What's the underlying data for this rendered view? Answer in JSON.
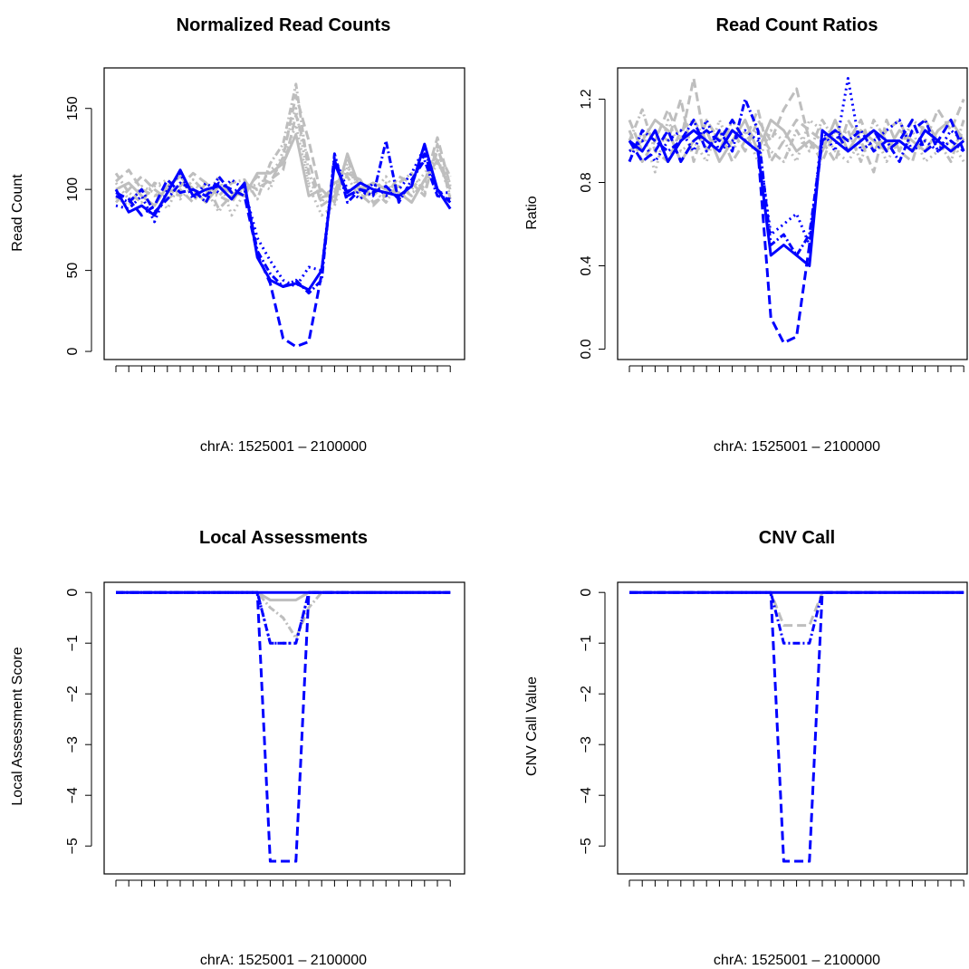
{
  "chart_data": [
    {
      "type": "line",
      "title": "Normalized Read Counts",
      "xlabel": "chrA: 1525001 – 2100000",
      "ylabel": "Read Count",
      "yticks": [
        0,
        50,
        100,
        150
      ],
      "ylim": [
        -5,
        175
      ],
      "x": [
        1,
        2,
        3,
        4,
        5,
        6,
        7,
        8,
        9,
        10,
        11,
        12,
        13,
        14,
        15,
        16,
        17,
        18,
        19,
        20,
        21,
        22,
        23,
        24,
        25,
        26,
        27
      ],
      "series": [
        {
          "color": "#bebebe",
          "dash": "10,5",
          "values": [
            105,
            112,
            100,
            96,
            98,
            102,
            110,
            104,
            88,
            96,
            100,
            108,
            104,
            120,
            158,
            130,
            95,
            98,
            120,
            97,
            90,
            98,
            102,
            96,
            104,
            132,
            102
          ]
        },
        {
          "color": "#bebebe",
          "dash": "2,4",
          "values": [
            95,
            90,
            102,
            98,
            88,
            104,
            98,
            96,
            108,
            84,
            98,
            100,
            112,
            118,
            140,
            102,
            84,
            90,
            114,
            102,
            96,
            104,
            94,
            100,
            110,
            120,
            96
          ]
        },
        {
          "color": "#bebebe",
          "dash": "8,3,2,3",
          "values": [
            110,
            98,
            92,
            104,
            100,
            96,
            106,
            98,
            96,
            104,
            106,
            94,
            116,
            128,
            165,
            110,
            92,
            104,
            108,
            94,
            100,
            92,
            104,
            110,
            98,
            124,
            108
          ]
        },
        {
          "color": "#bebebe",
          "dash": "none",
          "values": [
            100,
            104,
            96,
            90,
            102,
            108,
            100,
            92,
            102,
            98,
            96,
            110,
            110,
            116,
            134,
            96,
            100,
            92,
            122,
            100,
            104,
            100,
            98,
            92,
            106,
            118,
            100
          ]
        },
        {
          "color": "#bebebe",
          "dash": "10,5",
          "values": [
            92,
            100,
            108,
            100,
            94,
            100,
            92,
            104,
            96,
            92,
            104,
            100,
            106,
            112,
            146,
            118,
            90,
            96,
            110,
            106,
            92,
            96,
            108,
            104,
            96,
            128,
            94
          ]
        },
        {
          "color": "#bebebe",
          "dash": "2,4",
          "values": [
            104,
            94,
            98,
            102,
            106,
            94,
            102,
            100,
            86,
            100,
            98,
            104,
            100,
            124,
            150,
            104,
            96,
            100,
            116,
            96,
            98,
            108,
            96,
            98,
            102,
            116,
            104
          ]
        },
        {
          "color": "#0000ff",
          "dash": "10,5",
          "values": [
            98,
            94,
            84,
            90,
            106,
            98,
            100,
            96,
            104,
            100,
            96,
            60,
            42,
            8,
            3,
            6,
            48,
            118,
            96,
            100,
            98,
            102,
            94,
            104,
            122,
            100,
            92
          ]
        },
        {
          "color": "#0000ff",
          "dash": "2,4",
          "values": [
            90,
            88,
            96,
            80,
            100,
            110,
            94,
            104,
            98,
            106,
            100,
            70,
            56,
            44,
            40,
            52,
            50,
            120,
            100,
            94,
            104,
            96,
            100,
            110,
            126,
            98,
            98
          ]
        },
        {
          "color": "#0000ff",
          "dash": "8,3,2,3",
          "values": [
            96,
            92,
            100,
            86,
            94,
            104,
            100,
            92,
            108,
            98,
            102,
            62,
            48,
            40,
            44,
            36,
            44,
            122,
            92,
            100,
            96,
            130,
            92,
            106,
            118,
            96,
            94
          ]
        },
        {
          "color": "#0000ff",
          "dash": "none",
          "values": [
            100,
            86,
            90,
            84,
            98,
            112,
            96,
            100,
            102,
            94,
            104,
            58,
            44,
            40,
            42,
            38,
            50,
            116,
            98,
            104,
            100,
            98,
            96,
            102,
            128,
            100,
            88
          ]
        }
      ]
    },
    {
      "type": "line",
      "title": "Read Count Ratios",
      "xlabel": "chrA: 1525001 – 2100000",
      "ylabel": "Ratio",
      "yticks": [
        0.0,
        0.4,
        0.8,
        1.2
      ],
      "ytick_labels": [
        "0.0",
        "0.4",
        "0.8",
        "1.2"
      ],
      "ylim": [
        -0.05,
        1.35
      ],
      "x": [
        1,
        2,
        3,
        4,
        5,
        6,
        7,
        8,
        9,
        10,
        11,
        12,
        13,
        14,
        15,
        16,
        17,
        18,
        19,
        20,
        21,
        22,
        23,
        24,
        25,
        26,
        27
      ],
      "series": [
        {
          "color": "#bebebe",
          "dash": "10,5",
          "values": [
            1.1,
            0.95,
            1.05,
            1.0,
            1.2,
            0.9,
            1.1,
            1.0,
            1.05,
            0.95,
            1.1,
            1.0,
            1.15,
            1.25,
            1.0,
            0.9,
            1.05,
            1.0,
            1.1,
            0.95,
            1.05,
            1.1,
            0.95,
            1.0,
            1.15,
            1.05,
            1.2
          ]
        },
        {
          "color": "#bebebe",
          "dash": "2,4",
          "values": [
            0.9,
            1.05,
            0.85,
            1.1,
            0.95,
            1.0,
            0.9,
            1.1,
            0.95,
            1.05,
            0.9,
            1.05,
            1.0,
            0.9,
            1.1,
            1.05,
            0.95,
            0.9,
            1.0,
            1.05,
            0.9,
            1.0,
            1.05,
            0.9,
            0.95,
            1.0,
            0.9
          ]
        },
        {
          "color": "#bebebe",
          "dash": "8,3,2,3",
          "values": [
            1.0,
            1.15,
            0.95,
            0.9,
            1.05,
            1.1,
            1.0,
            0.95,
            1.1,
            1.0,
            1.05,
            0.95,
            0.9,
            1.05,
            0.95,
            1.1,
            1.0,
            1.05,
            0.9,
            1.1,
            1.0,
            0.95,
            1.1,
            1.05,
            1.0,
            0.9,
            1.1
          ]
        },
        {
          "color": "#bebebe",
          "dash": "none",
          "values": [
            0.95,
            1.0,
            1.1,
            1.05,
            0.9,
            1.0,
            1.05,
            0.9,
            1.0,
            1.1,
            0.95,
            1.1,
            1.05,
            0.95,
            1.0,
            0.95,
            1.1,
            0.95,
            1.05,
            1.0,
            0.95,
            1.05,
            1.0,
            0.95,
            1.05,
            1.1,
            1.0
          ]
        },
        {
          "color": "#bebebe",
          "dash": "10,5",
          "values": [
            1.05,
            0.9,
            1.0,
            1.15,
            1.0,
            1.3,
            0.95,
            1.05,
            0.9,
            1.0,
            1.15,
            0.9,
            1.0,
            1.1,
            1.05,
            1.0,
            0.9,
            1.1,
            1.0,
            0.85,
            1.1,
            0.95,
            0.9,
            1.1,
            1.0,
            0.95,
            1.05
          ]
        },
        {
          "color": "#0000ff",
          "dash": "10,5",
          "values": [
            1.0,
            0.9,
            0.95,
            1.05,
            0.9,
            1.0,
            1.05,
            1.0,
            1.1,
            1.0,
            0.95,
            0.15,
            0.03,
            0.06,
            0.5,
            1.0,
            1.05,
            0.95,
            1.0,
            1.05,
            0.95,
            1.0,
            1.1,
            0.95,
            1.0,
            1.1,
            0.95
          ]
        },
        {
          "color": "#0000ff",
          "dash": "2,4",
          "values": [
            0.95,
            1.0,
            0.9,
            1.0,
            1.05,
            0.95,
            1.1,
            0.95,
            1.0,
            1.05,
            1.0,
            0.55,
            0.6,
            0.65,
            0.5,
            1.05,
            0.95,
            1.3,
            0.95,
            1.0,
            1.05,
            1.1,
            0.95,
            1.0,
            0.95,
            1.05,
            1.0
          ]
        },
        {
          "color": "#0000ff",
          "dash": "8,3,2,3",
          "values": [
            0.9,
            1.05,
            1.0,
            0.95,
            1.0,
            1.1,
            0.95,
            1.05,
            0.95,
            1.2,
            1.05,
            0.5,
            0.55,
            0.45,
            0.55,
            1.0,
            1.05,
            1.0,
            1.05,
            0.95,
            1.0,
            0.9,
            1.05,
            1.1,
            0.95,
            1.0,
            0.95
          ]
        },
        {
          "color": "#0000ff",
          "dash": "none",
          "values": [
            1.0,
            0.95,
            1.05,
            0.9,
            1.0,
            1.05,
            1.0,
            0.95,
            1.05,
            1.0,
            0.95,
            0.45,
            0.5,
            0.45,
            0.4,
            1.05,
            1.0,
            0.95,
            1.0,
            1.05,
            1.0,
            1.0,
            0.95,
            1.05,
            1.0,
            0.95,
            1.0
          ]
        }
      ]
    },
    {
      "type": "line",
      "title": "Local Assessments",
      "xlabel": "chrA: 1525001 – 2100000",
      "ylabel": "Local Assessment Score",
      "yticks": [
        0,
        -1,
        -2,
        -3,
        -4,
        -5
      ],
      "ytick_labels": [
        "0",
        "−1",
        "−2",
        "−3",
        "−4",
        "−5"
      ],
      "ylim": [
        -5.55,
        0.2
      ],
      "x": [
        1,
        2,
        3,
        4,
        5,
        6,
        7,
        8,
        9,
        10,
        11,
        12,
        13,
        14,
        15,
        16,
        17,
        18,
        19,
        20,
        21,
        22,
        23,
        24,
        25,
        26,
        27
      ],
      "series": [
        {
          "color": "#bebebe",
          "dash": "none",
          "values": [
            0,
            0,
            0,
            0,
            0,
            0,
            0,
            0,
            0,
            0,
            0,
            0,
            -0.15,
            -0.15,
            -0.15,
            0,
            0,
            0,
            0,
            0,
            0,
            0,
            0,
            0,
            0,
            0,
            0
          ]
        },
        {
          "color": "#bebebe",
          "dash": "8,3,2,3",
          "values": [
            0,
            0,
            0,
            0,
            0,
            0,
            0,
            0,
            0,
            0,
            0,
            0,
            -0.3,
            -0.5,
            -0.9,
            -0.3,
            0,
            0,
            0,
            0,
            0,
            0,
            0,
            0,
            0,
            0,
            0
          ]
        },
        {
          "color": "#0000ff",
          "dash": "10,5",
          "values": [
            0,
            0,
            0,
            0,
            0,
            0,
            0,
            0,
            0,
            0,
            0,
            0,
            -5.3,
            -5.3,
            -5.3,
            0,
            0,
            0,
            0,
            0,
            0,
            0,
            0,
            0,
            0,
            0,
            0
          ]
        },
        {
          "color": "#0000ff",
          "dash": "8,3,2,3",
          "values": [
            0,
            0,
            0,
            0,
            0,
            0,
            0,
            0,
            0,
            0,
            0,
            0,
            -1,
            -1,
            -1,
            0,
            0,
            0,
            0,
            0,
            0,
            0,
            0,
            0,
            0,
            0,
            0
          ]
        },
        {
          "color": "#0000ff",
          "dash": "2,4",
          "values": [
            0,
            0,
            0,
            0,
            0,
            0,
            0,
            0,
            0,
            0,
            0,
            0,
            -1,
            -1,
            -1,
            0,
            0,
            0,
            0,
            0,
            0,
            0,
            0,
            0,
            0,
            0,
            0
          ]
        },
        {
          "color": "#0000ff",
          "dash": "none",
          "values": [
            0,
            0,
            0,
            0,
            0,
            0,
            0,
            0,
            0,
            0,
            0,
            0,
            0,
            0,
            0,
            0,
            0,
            0,
            0,
            0,
            0,
            0,
            0,
            0,
            0,
            0,
            0
          ]
        }
      ]
    },
    {
      "type": "line",
      "title": "CNV Call",
      "xlabel": "chrA: 1525001 – 2100000",
      "ylabel": "CNV Call Value",
      "yticks": [
        0,
        -1,
        -2,
        -3,
        -4,
        -5
      ],
      "ytick_labels": [
        "0",
        "−1",
        "−2",
        "−3",
        "−4",
        "−5"
      ],
      "ylim": [
        -5.55,
        0.2
      ],
      "x": [
        1,
        2,
        3,
        4,
        5,
        6,
        7,
        8,
        9,
        10,
        11,
        12,
        13,
        14,
        15,
        16,
        17,
        18,
        19,
        20,
        21,
        22,
        23,
        24,
        25,
        26,
        27
      ],
      "series": [
        {
          "color": "#bebebe",
          "dash": "none",
          "values": [
            0,
            0,
            0,
            0,
            0,
            0,
            0,
            0,
            0,
            0,
            0,
            0,
            0,
            0,
            0,
            0,
            0,
            0,
            0,
            0,
            0,
            0,
            0,
            0,
            0,
            0,
            0
          ]
        },
        {
          "color": "#bebebe",
          "dash": "10,5",
          "values": [
            0,
            0,
            0,
            0,
            0,
            0,
            0,
            0,
            0,
            0,
            0,
            0,
            -0.65,
            -0.65,
            -0.65,
            0,
            0,
            0,
            0,
            0,
            0,
            0,
            0,
            0,
            0,
            0,
            0
          ]
        },
        {
          "color": "#0000ff",
          "dash": "10,5",
          "values": [
            0,
            0,
            0,
            0,
            0,
            0,
            0,
            0,
            0,
            0,
            0,
            0,
            -5.3,
            -5.3,
            -5.3,
            0,
            0,
            0,
            0,
            0,
            0,
            0,
            0,
            0,
            0,
            0,
            0
          ]
        },
        {
          "color": "#0000ff",
          "dash": "8,3,2,3",
          "values": [
            0,
            0,
            0,
            0,
            0,
            0,
            0,
            0,
            0,
            0,
            0,
            0,
            -1,
            -1,
            -1,
            0,
            0,
            0,
            0,
            0,
            0,
            0,
            0,
            0,
            0,
            0,
            0
          ]
        },
        {
          "color": "#0000ff",
          "dash": "none",
          "values": [
            0,
            0,
            0,
            0,
            0,
            0,
            0,
            0,
            0,
            0,
            0,
            0,
            0,
            0,
            0,
            0,
            0,
            0,
            0,
            0,
            0,
            0,
            0,
            0,
            0,
            0,
            0
          ]
        }
      ]
    }
  ]
}
